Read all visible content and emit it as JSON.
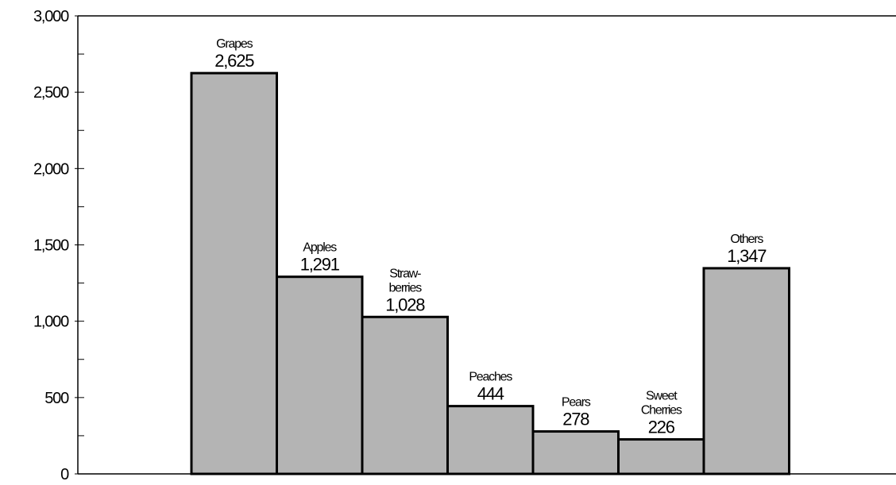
{
  "chart_data": {
    "type": "bar",
    "title": "",
    "xlabel": "",
    "ylabel": "",
    "ylim": [
      0,
      3000
    ],
    "yticks": [
      0,
      500,
      1000,
      1500,
      2000,
      2500,
      3000
    ],
    "ytick_labels": [
      "0",
      "500",
      "1,000",
      "1,500",
      "2,000",
      "2,500",
      "3,000"
    ],
    "minor_tick_step": 250,
    "grid": false,
    "legend": "none",
    "bar_color": "#b4b4b4",
    "bar_edge_color": "#000000",
    "bars": [
      {
        "label_lines": [
          "Grapes"
        ],
        "value": 2625,
        "value_label": "2,625"
      },
      {
        "label_lines": [
          "Apples"
        ],
        "value": 1291,
        "value_label": "1,291"
      },
      {
        "label_lines": [
          "Straw-",
          "berries"
        ],
        "value": 1028,
        "value_label": "1,028"
      },
      {
        "label_lines": [
          "Peaches"
        ],
        "value": 444,
        "value_label": "444"
      },
      {
        "label_lines": [
          "Pears"
        ],
        "value": 278,
        "value_label": "278"
      },
      {
        "label_lines": [
          "Sweet",
          "Cherries"
        ],
        "value": 226,
        "value_label": "226"
      },
      {
        "label_lines": [
          "Others"
        ],
        "value": 1347,
        "value_label": "1,347"
      }
    ]
  }
}
